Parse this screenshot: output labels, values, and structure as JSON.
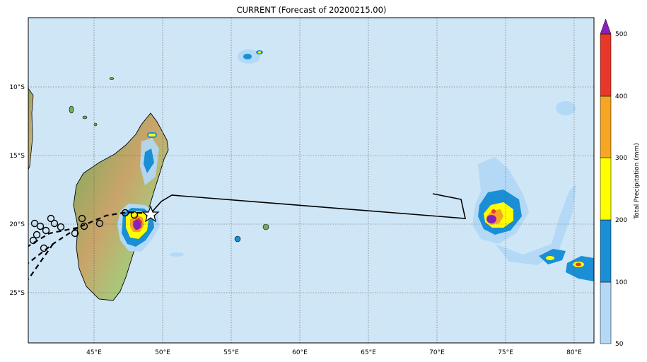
{
  "title": "CURRENT (Forecast of 20200215.00)",
  "x_ticks": [
    "45°E",
    "50°E",
    "55°E",
    "60°E",
    "65°E",
    "70°E",
    "75°E",
    "80°E"
  ],
  "y_ticks": [
    "10°S",
    "15°S",
    "20°S",
    "25°S"
  ],
  "colorbar": {
    "label": "Total Precipitation (mm)",
    "levels": [
      "50",
      "100",
      "200",
      "300",
      "400",
      "500"
    ],
    "colors": [
      "#b3d9f7",
      "#1a8fd6",
      "#ffff00",
      "#f5a623",
      "#e8382a",
      "#8a1fbf"
    ]
  },
  "colors": {
    "ocean": "#cfe6f6",
    "grid": "#555555"
  }
}
